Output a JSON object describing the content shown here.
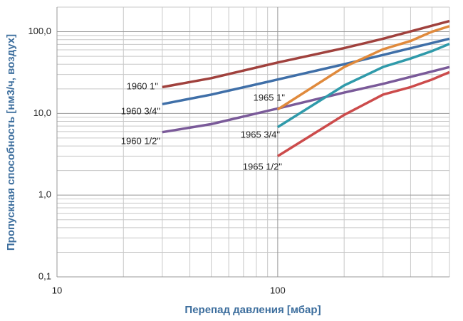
{
  "chart_data": {
    "type": "line",
    "log_x": true,
    "log_y": true,
    "grid": true,
    "xlabel": "Перепад давления [мбар]",
    "ylabel": "Пропускная способность [нм3/ч, воздух]",
    "xlim": [
      10,
      600
    ],
    "ylim": [
      0.1,
      200
    ],
    "xticks": [
      10,
      100
    ],
    "yticks": [
      {
        "value": 0.1,
        "label": "0,1"
      },
      {
        "value": 1,
        "label": "1,0"
      },
      {
        "value": 10,
        "label": "10,0"
      },
      {
        "value": 100,
        "label": "100,0"
      }
    ],
    "minor_xticks": [
      20,
      30,
      40,
      50,
      60,
      70,
      80,
      90,
      200,
      300,
      400,
      500,
      600
    ],
    "minor_yticks": [
      0.2,
      0.3,
      0.4,
      0.5,
      0.6,
      0.7,
      0.8,
      0.9,
      2,
      3,
      4,
      5,
      6,
      7,
      8,
      9,
      20,
      30,
      40,
      50,
      60,
      70,
      80,
      90,
      200
    ],
    "series": [
      {
        "name": "1960 1\"",
        "color": "#a0413d",
        "x": [
          30,
          50,
          100,
          200,
          300,
          600
        ],
        "values": [
          21,
          27,
          42,
          63,
          82,
          135
        ]
      },
      {
        "name": "1960 3/4\"",
        "color": "#3f6fa8",
        "x": [
          30,
          50,
          100,
          200,
          300,
          600
        ],
        "values": [
          13,
          17,
          26,
          40,
          52,
          82
        ]
      },
      {
        "name": "1960 1/2\"",
        "color": "#7a5a99",
        "x": [
          30,
          50,
          100,
          200,
          300,
          600
        ],
        "values": [
          5.9,
          7.4,
          11.5,
          18,
          23,
          37
        ]
      },
      {
        "name": "1965 1\"",
        "color": "#e08a3c",
        "x": [
          100,
          200,
          300,
          400,
          500,
          600
        ],
        "values": [
          11.2,
          37,
          61,
          77,
          100,
          117
        ]
      },
      {
        "name": "1965 3/4\"",
        "color": "#2f9aaa",
        "x": [
          100,
          200,
          300,
          400,
          500,
          600
        ],
        "values": [
          6.8,
          22,
          37,
          47,
          58,
          71
        ]
      },
      {
        "name": "1965 1/2\"",
        "color": "#cc4b4b",
        "x": [
          100,
          200,
          300,
          400,
          500,
          600
        ],
        "values": [
          3.0,
          9.6,
          17,
          21,
          26,
          32
        ]
      }
    ]
  }
}
